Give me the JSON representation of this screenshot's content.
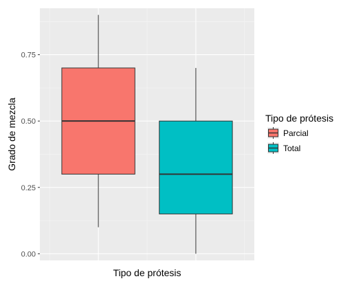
{
  "chart_data": {
    "type": "boxplot",
    "title": "",
    "xlabel": "Tipo de prótesis",
    "ylabel": "Grado de mezcla",
    "ylim": [
      -0.025,
      0.925
    ],
    "yticks": [
      0.0,
      0.25,
      0.5,
      0.75
    ],
    "ytick_labels": [
      "0.00",
      "0.25",
      "0.50",
      "0.75"
    ],
    "grid": true,
    "legend": {
      "title": "Tipo de prótesis",
      "placement": "right"
    },
    "series": [
      {
        "name": "Parcial",
        "color": "#F8766D",
        "min": 0.1,
        "q1": 0.3,
        "median": 0.5,
        "q3": 0.7,
        "max": 0.9
      },
      {
        "name": "Total",
        "color": "#00BFC4",
        "min": 0.0,
        "q1": 0.15,
        "median": 0.3,
        "q3": 0.5,
        "max": 0.7
      }
    ]
  },
  "colors": {
    "panel_background": "#EBEBEB",
    "grid_major": "#FFFFFF",
    "grid_minor": "#F5F5F5",
    "box_outline": "#333333"
  }
}
